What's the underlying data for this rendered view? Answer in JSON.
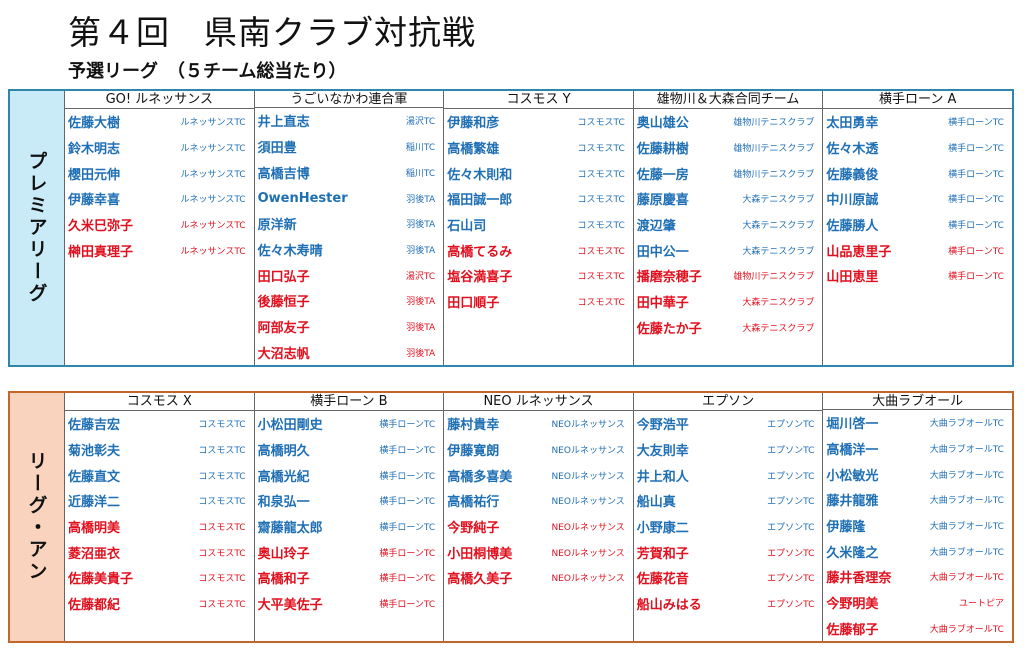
{
  "header": {
    "title": "第４回　県南クラブ対抗戦",
    "subtitle": "予選リーグ　（５チーム総当たり）"
  },
  "colors": {
    "male": "#1f6fb5",
    "female": "#e0101e",
    "premier_border": "#2e86a8",
    "premier_label_bg": "#c9ebf8",
    "an_border": "#c4662a",
    "an_label_bg": "#f9d3bd"
  },
  "leagues": [
    {
      "label": "プレミアリーグ",
      "teams": [
        {
          "name": "GO! ルネッサンス",
          "players": [
            {
              "name": "佐藤大樹",
              "club": "ルネッサンスTC",
              "gender": "male"
            },
            {
              "name": "鈴木明志",
              "club": "ルネッサンスTC",
              "gender": "male"
            },
            {
              "name": "櫻田元伸",
              "club": "ルネッサンスTC",
              "gender": "male"
            },
            {
              "name": "伊藤幸喜",
              "club": "ルネッサンスTC",
              "gender": "male"
            },
            {
              "name": "久米巳弥子",
              "club": "ルネッサンスTC",
              "gender": "female"
            },
            {
              "name": "榊田真理子",
              "club": "ルネッサンスTC",
              "gender": "female"
            }
          ]
        },
        {
          "name": "うごいなかわ連合軍",
          "players": [
            {
              "name": "井上直志",
              "club": "湯沢TC",
              "gender": "male"
            },
            {
              "name": "須田豊",
              "club": "稲川TC",
              "gender": "male"
            },
            {
              "name": "高橋吉博",
              "club": "稲川TC",
              "gender": "male"
            },
            {
              "name": "OwenHester",
              "club": "羽後TA",
              "gender": "male"
            },
            {
              "name": "原洋新",
              "club": "羽後TA",
              "gender": "male"
            },
            {
              "name": "佐々木寿晴",
              "club": "羽後TA",
              "gender": "male"
            },
            {
              "name": "田口弘子",
              "club": "湯沢TC",
              "gender": "female"
            },
            {
              "name": "後藤恒子",
              "club": "羽後TA",
              "gender": "female"
            },
            {
              "name": "阿部友子",
              "club": "羽後TA",
              "gender": "female"
            },
            {
              "name": "大沼志帆",
              "club": "羽後TA",
              "gender": "female"
            }
          ]
        },
        {
          "name": "コスモス Y",
          "players": [
            {
              "name": "伊藤和彦",
              "club": "コスモスTC",
              "gender": "male"
            },
            {
              "name": "高橋繁雄",
              "club": "コスモスTC",
              "gender": "male"
            },
            {
              "name": "佐々木則和",
              "club": "コスモスTC",
              "gender": "male"
            },
            {
              "name": "福田誠一郎",
              "club": "コスモスTC",
              "gender": "male"
            },
            {
              "name": "石山司",
              "club": "コスモスTC",
              "gender": "male"
            },
            {
              "name": "高橋てるみ",
              "club": "コスモスTC",
              "gender": "female"
            },
            {
              "name": "塩谷満喜子",
              "club": "コスモスTC",
              "gender": "female"
            },
            {
              "name": "田口順子",
              "club": "コスモスTC",
              "gender": "female"
            }
          ]
        },
        {
          "name": "雄物川＆大森合同チーム",
          "players": [
            {
              "name": "奥山雄公",
              "club": "雄物川テニスクラブ",
              "gender": "male"
            },
            {
              "name": "佐藤耕樹",
              "club": "雄物川テニスクラブ",
              "gender": "male"
            },
            {
              "name": "佐藤一房",
              "club": "雄物川テニスクラブ",
              "gender": "male"
            },
            {
              "name": "藤原慶喜",
              "club": "大森テニスクラブ",
              "gender": "male"
            },
            {
              "name": "渡辺肇",
              "club": "大森テニスクラブ",
              "gender": "male"
            },
            {
              "name": "田中公一",
              "club": "大森テニスクラブ",
              "gender": "male"
            },
            {
              "name": "播磨奈穂子",
              "club": "雄物川テニスクラブ",
              "gender": "female"
            },
            {
              "name": "田中華子",
              "club": "大森テニスクラブ",
              "gender": "female"
            },
            {
              "name": "佐藤たか子",
              "club": "大森テニスクラブ",
              "gender": "female"
            }
          ]
        },
        {
          "name": "横手ローン A",
          "players": [
            {
              "name": "太田勇幸",
              "club": "横手ローンTC",
              "gender": "male"
            },
            {
              "name": "佐々木透",
              "club": "横手ローンTC",
              "gender": "male"
            },
            {
              "name": "佐藤義俊",
              "club": "横手ローンTC",
              "gender": "male"
            },
            {
              "name": "中川原誠",
              "club": "横手ローンTC",
              "gender": "male"
            },
            {
              "name": "佐藤勝人",
              "club": "横手ローンTC",
              "gender": "male"
            },
            {
              "name": "山品恵里子",
              "club": "横手ローンTC",
              "gender": "female"
            },
            {
              "name": "山田恵里",
              "club": "横手ローンTC",
              "gender": "female"
            }
          ]
        }
      ]
    },
    {
      "label": "リーグ・アン",
      "teams": [
        {
          "name": "コスモス X",
          "players": [
            {
              "name": "佐藤吉宏",
              "club": "コスモスTC",
              "gender": "male"
            },
            {
              "name": "菊池彰夫",
              "club": "コスモスTC",
              "gender": "male"
            },
            {
              "name": "佐藤直文",
              "club": "コスモスTC",
              "gender": "male"
            },
            {
              "name": "近藤洋二",
              "club": "コスモスTC",
              "gender": "male"
            },
            {
              "name": "高橋明美",
              "club": "コスモスTC",
              "gender": "female"
            },
            {
              "name": "菱沼亜衣",
              "club": "コスモスTC",
              "gender": "female"
            },
            {
              "name": "佐藤美貴子",
              "club": "コスモスTC",
              "gender": "female"
            },
            {
              "name": "佐藤都紀",
              "club": "コスモスTC",
              "gender": "female"
            }
          ]
        },
        {
          "name": "横手ローン B",
          "players": [
            {
              "name": "小松田剛史",
              "club": "横手ローンTC",
              "gender": "male"
            },
            {
              "name": "高橋明久",
              "club": "横手ローンTC",
              "gender": "male"
            },
            {
              "name": "高橋光紀",
              "club": "横手ローンTC",
              "gender": "male"
            },
            {
              "name": "和泉弘一",
              "club": "横手ローンTC",
              "gender": "male"
            },
            {
              "name": "齋藤龍太郎",
              "club": "横手ローンTC",
              "gender": "male"
            },
            {
              "name": "奥山玲子",
              "club": "横手ローンTC",
              "gender": "female"
            },
            {
              "name": "高橋和子",
              "club": "横手ローンTC",
              "gender": "female"
            },
            {
              "name": "大平美佐子",
              "club": "横手ローンTC",
              "gender": "female"
            }
          ]
        },
        {
          "name": "NEO ルネッサンス",
          "players": [
            {
              "name": "藤村貴幸",
              "club": "NEOルネッサンス",
              "gender": "male"
            },
            {
              "name": "伊藤寛朗",
              "club": "NEOルネッサンス",
              "gender": "male"
            },
            {
              "name": "高橋多喜美",
              "club": "NEOルネッサンス",
              "gender": "male"
            },
            {
              "name": "高橋祐行",
              "club": "NEOルネッサンス",
              "gender": "male"
            },
            {
              "name": "今野純子",
              "club": "NEOルネッサンス",
              "gender": "female"
            },
            {
              "name": "小田桐博美",
              "club": "NEOルネッサンス",
              "gender": "female"
            },
            {
              "name": "高橋久美子",
              "club": "NEOルネッサンス",
              "gender": "female"
            }
          ]
        },
        {
          "name": "エプソン",
          "players": [
            {
              "name": "今野浩平",
              "club": "エプソンTC",
              "gender": "male"
            },
            {
              "name": "大友則幸",
              "club": "エプソンTC",
              "gender": "male"
            },
            {
              "name": "井上和人",
              "club": "エプソンTC",
              "gender": "male"
            },
            {
              "name": "船山真",
              "club": "エプソンTC",
              "gender": "male"
            },
            {
              "name": "小野康二",
              "club": "エプソンTC",
              "gender": "male"
            },
            {
              "name": "芳賀和子",
              "club": "エプソンTC",
              "gender": "female"
            },
            {
              "name": "佐藤花音",
              "club": "エプソンTC",
              "gender": "female"
            },
            {
              "name": "船山みはる",
              "club": "エプソンTC",
              "gender": "female"
            }
          ]
        },
        {
          "name": "大曲ラブオール",
          "players": [
            {
              "name": "堀川啓一",
              "club": "大曲ラブオールTC",
              "gender": "male"
            },
            {
              "name": "高橋洋一",
              "club": "大曲ラブオールTC",
              "gender": "male"
            },
            {
              "name": "小松敏光",
              "club": "大曲ラブオールTC",
              "gender": "male"
            },
            {
              "name": "藤井龍雅",
              "club": "大曲ラブオールTC",
              "gender": "male"
            },
            {
              "name": "伊藤隆",
              "club": "大曲ラブオールTC",
              "gender": "male"
            },
            {
              "name": "久米隆之",
              "club": "大曲ラブオールTC",
              "gender": "male"
            },
            {
              "name": "藤井香理奈",
              "club": "大曲ラブオールTC",
              "gender": "female"
            },
            {
              "name": "今野明美",
              "club": "ユートピア",
              "gender": "female"
            },
            {
              "name": "佐藤郁子",
              "club": "大曲ラブオールTC",
              "gender": "female"
            }
          ]
        }
      ]
    }
  ]
}
